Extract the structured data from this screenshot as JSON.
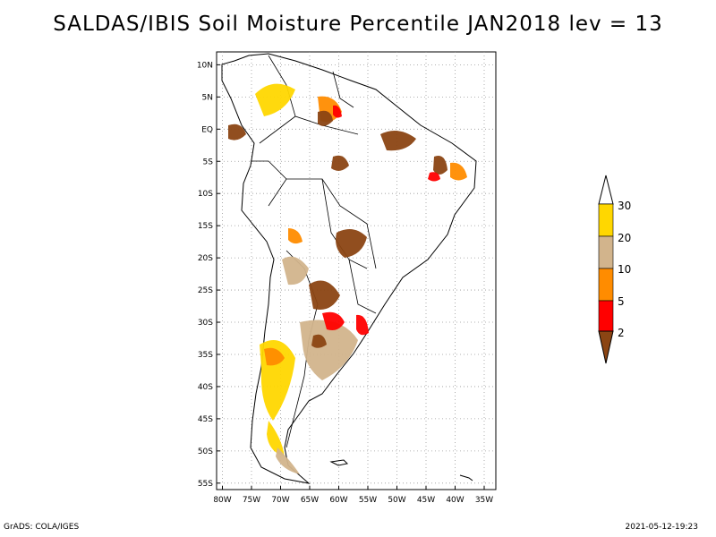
{
  "title": "SALDAS/IBIS Soil Moisture Percentile JAN2018 lev = 13",
  "footer_left": "GrADS: COLA/IGES",
  "footer_right": "2021-05-12-19:23",
  "map": {
    "lat_ticks": [
      "10N",
      "5N",
      "EQ",
      "5S",
      "10S",
      "15S",
      "20S",
      "25S",
      "30S",
      "35S",
      "40S",
      "45S",
      "50S",
      "55S"
    ],
    "lat_values": [
      10,
      5,
      0,
      -5,
      -10,
      -15,
      -20,
      -25,
      -30,
      -35,
      -40,
      -45,
      -50,
      -55
    ],
    "lon_ticks": [
      "80W",
      "75W",
      "70W",
      "65W",
      "60W",
      "55W",
      "50W",
      "45W",
      "40W",
      "35W"
    ],
    "lon_values": [
      -80,
      -75,
      -70,
      -65,
      -60,
      -55,
      -50,
      -45,
      -40,
      -35
    ],
    "lon_range": [
      -81,
      -33
    ],
    "lat_range": [
      12,
      -56
    ],
    "grid": true
  },
  "legend": {
    "labels": [
      "2",
      "5",
      "10",
      "20",
      "30"
    ],
    "colors": {
      "lt2": "#8b4513",
      "2to5": "#ff0000",
      "5to10": "#ff8c00",
      "10to20": "#d2b48c",
      "20to30": "#ffd700",
      "gt30": "#ffffff"
    }
  }
}
